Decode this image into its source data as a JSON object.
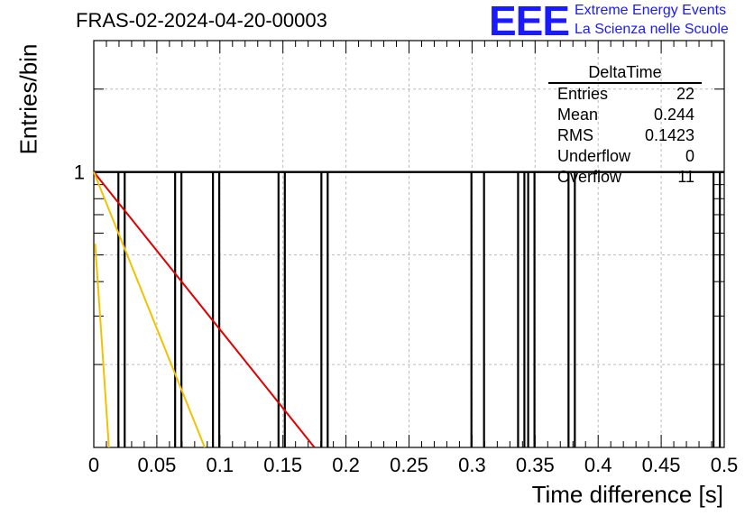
{
  "header": {
    "run_title": "FRAS-02-2024-04-20-00003",
    "logo_text": "EEE",
    "logo_line_1": "Extreme Energy Events",
    "logo_line_2": "La Scienza nelle Scuole",
    "logo_color": "#1a1aff"
  },
  "stats": {
    "title": "DeltaTime",
    "rows": [
      {
        "label": "Entries",
        "value": "22"
      },
      {
        "label": "Mean",
        "value": "0.244"
      },
      {
        "label": "RMS",
        "value": "0.1423"
      },
      {
        "label": "Underflow",
        "value": "0"
      },
      {
        "label": "Overflow",
        "value": "11"
      }
    ]
  },
  "chart_data": {
    "type": "histogram",
    "title": "FRAS-02-2024-04-20-00003",
    "xlabel": "Time difference [s]",
    "ylabel": "Entries/bin",
    "xlim": [
      0,
      0.5
    ],
    "ylim_log": [
      0.1,
      3
    ],
    "y_log_scale": true,
    "grid": true,
    "x_ticks": [
      "0",
      "0.05",
      "0.1",
      "0.15",
      "0.2",
      "0.25",
      "0.3",
      "0.35",
      "0.4",
      "0.45",
      "0.5"
    ],
    "y_ticks": [
      "1"
    ],
    "hist_color": "#000000",
    "entries_at_1": [
      {
        "x0": 0.0195,
        "x1": 0.0245
      },
      {
        "x0": 0.0645,
        "x1": 0.0695
      },
      {
        "x0": 0.0945,
        "x1": 0.0995
      },
      {
        "x0": 0.1465,
        "x1": 0.1515
      },
      {
        "x0": 0.1805,
        "x1": 0.1855
      },
      {
        "x0": 0.2995,
        "x1": 0.3095
      },
      {
        "x0": 0.3365,
        "x1": 0.3415
      },
      {
        "x0": 0.3445,
        "x1": 0.3495
      },
      {
        "x0": 0.3765,
        "x1": 0.3815
      },
      {
        "x0": 0.4915,
        "x1": 0.4965
      }
    ],
    "fits": [
      {
        "color": "#e00000",
        "points": [
          [
            0.0,
            1.0
          ],
          [
            0.175,
            0.1
          ]
        ]
      },
      {
        "color": "#f2c200",
        "points": [
          [
            0.0,
            1.0
          ],
          [
            0.088,
            0.1
          ]
        ]
      },
      {
        "color": "#f2c200",
        "points": [
          [
            0.001,
            0.55
          ],
          [
            0.005,
            0.3
          ],
          [
            0.009,
            0.16
          ],
          [
            0.012,
            0.1
          ]
        ]
      }
    ]
  }
}
